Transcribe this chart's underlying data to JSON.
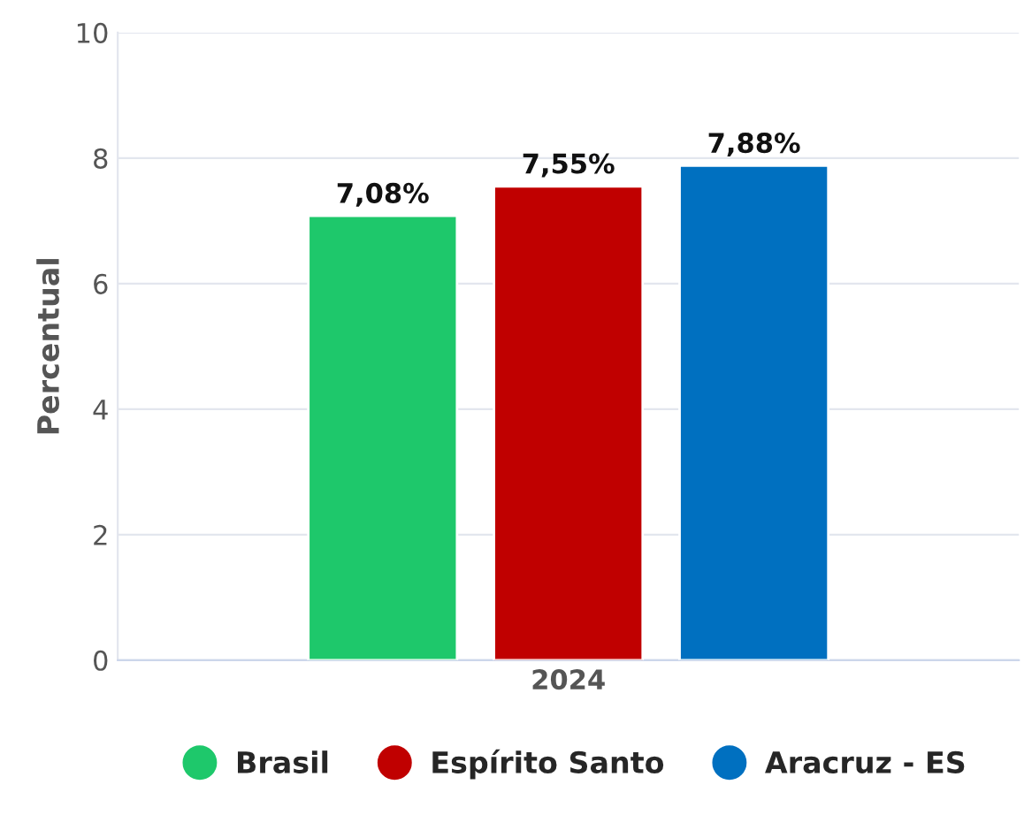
{
  "chart_data": {
    "type": "bar",
    "categories": [
      "2024"
    ],
    "ylabel": "Percentual",
    "ylim": [
      0,
      10
    ],
    "yticks": [
      0,
      2,
      4,
      6,
      8,
      10
    ],
    "grid": "y",
    "legend": "bottom",
    "series": [
      {
        "name": "Brasil",
        "color": "#1ec86b",
        "values": [
          7.08
        ],
        "value_labels": [
          "7,08%"
        ]
      },
      {
        "name": "Espírito Santo",
        "color": "#c00000",
        "values": [
          7.55
        ],
        "value_labels": [
          "7,55%"
        ]
      },
      {
        "name": "Aracruz - ES",
        "color": "#0070c0",
        "values": [
          7.88
        ],
        "value_labels": [
          "7,88%"
        ]
      }
    ]
  }
}
